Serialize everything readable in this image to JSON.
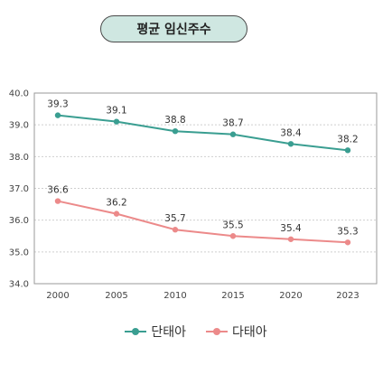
{
  "title": "평균 임신주수",
  "colors": {
    "single": "#3a9e91",
    "multi": "#ec8a8a",
    "title_bg": "#cfe7e1"
  },
  "chart_data": {
    "type": "line",
    "title": "평균 임신주수",
    "xlabel": "",
    "ylabel": "",
    "x": [
      "2000",
      "2005",
      "2010",
      "2015",
      "2020",
      "2023"
    ],
    "ylim": [
      34.0,
      40.0
    ],
    "yticks": [
      "34.0",
      "35.0",
      "36.0",
      "37.0",
      "38.0",
      "39.0",
      "40.0"
    ],
    "grid": true,
    "legend_position": "bottom",
    "series": [
      {
        "name": "단태아",
        "values": [
          39.3,
          39.1,
          38.8,
          38.7,
          38.4,
          38.2
        ],
        "labels": [
          "39.3",
          "39.1",
          "38.8",
          "38.7",
          "38.4",
          "38.2"
        ]
      },
      {
        "name": "다태아",
        "values": [
          36.6,
          36.2,
          35.7,
          35.5,
          35.4,
          35.3
        ],
        "labels": [
          "36.6",
          "36.2",
          "35.7",
          "35.5",
          "35.4",
          "35.3"
        ]
      }
    ]
  }
}
